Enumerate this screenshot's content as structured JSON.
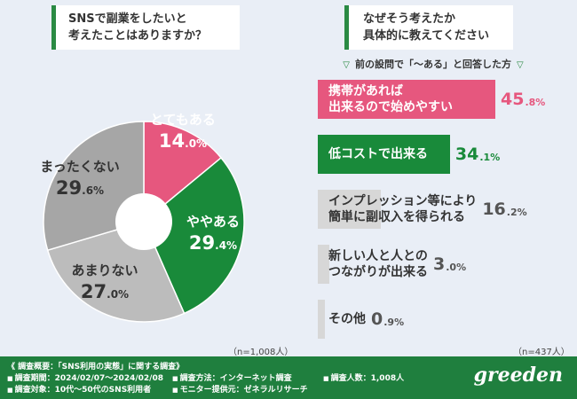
{
  "left_question": {
    "line1": "SNSで副業をしたいと",
    "line2": "考えたことはありますか？"
  },
  "right_question": {
    "line1": "なぜそう考えたか",
    "line2": "具体的に教えてください"
  },
  "subnote": {
    "tri": "▽",
    "text": "前の設問で「〜ある」と回答した方"
  },
  "left_n": "（n=1,008人）",
  "right_n": "（n=437人）",
  "colors": {
    "pink": "#e6577e",
    "green": "#198a3a",
    "gray": "#a6a6a6",
    "lightgray": "#bcbcbc",
    "track": "#d7d7d7",
    "footer": "#1f7f3e"
  },
  "chart_data": [
    {
      "type": "pie",
      "slices": [
        {
          "label": "とてもある",
          "value": 14.0,
          "num": "14",
          "dec": ".0%",
          "color": "#e6577e"
        },
        {
          "label": "ややある",
          "value": 29.4,
          "num": "29",
          "dec": ".4%",
          "color": "#198a3a"
        },
        {
          "label": "あまりない",
          "value": 27.0,
          "num": "27",
          "dec": ".0%",
          "color": "#bcbcbc"
        },
        {
          "label": "まったくない",
          "value": 29.6,
          "num": "29",
          "dec": ".6%",
          "color": "#a6a6a6"
        }
      ]
    },
    {
      "type": "bar",
      "bars": [
        {
          "lines": [
            "携帯があれば",
            "出来るので始めやすい"
          ],
          "value": 45.8,
          "num": "45",
          "dec": ".8%",
          "fill": "#e6577e"
        },
        {
          "lines": [
            "低コストで出来る"
          ],
          "value": 34.1,
          "num": "34",
          "dec": ".1%",
          "fill": "#198a3a"
        },
        {
          "lines": [
            "インプレッション等により",
            "簡単に副収入を得られる"
          ],
          "value": 16.2,
          "num": "16",
          "dec": ".2%",
          "fill": "#d7d7d7"
        },
        {
          "lines": [
            "新しい人と人との",
            "つながりが出来る"
          ],
          "value": 3.0,
          "num": "3",
          "dec": ".0%",
          "fill": "#d7d7d7"
        },
        {
          "lines": [
            "その他"
          ],
          "value": 0.9,
          "num": "0",
          "dec": ".9%",
          "fill": "#d7d7d7"
        }
      ]
    }
  ],
  "footer": {
    "survey_name": "《 調査概要：「SNS利用の実態」に関する調査》",
    "period": "調査期間：2024/02/07〜2024/02/08",
    "method": "調査方法：インターネット調査",
    "count": "調査人数：1,008人",
    "target": "調査対象：10代〜50代のSNS利用者",
    "provider": "モニター提供元：ゼネラルリサーチ",
    "bullet": "■",
    "brand": "greeden"
  }
}
